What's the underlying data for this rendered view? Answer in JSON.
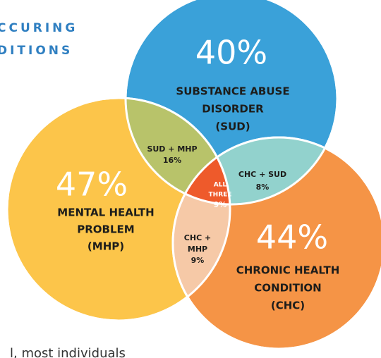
{
  "header": {
    "lines": [
      "CCURING",
      "DITIONS"
    ]
  },
  "circles": [
    {
      "percent": "40%",
      "label": [
        "SUBSTANCE ABUSE",
        "DISORDER",
        "(SUD)"
      ]
    },
    {
      "percent": "47%",
      "label": [
        "MENTAL HEALTH",
        "PROBLEM",
        "(MHP)"
      ]
    },
    {
      "percent": "44%",
      "label": [
        "CHRONIC HEALTH",
        "CONDITION",
        "(CHC)"
      ]
    }
  ],
  "overlaps": [
    {
      "label": [
        "SUD + MHP",
        "16%"
      ]
    },
    {
      "label": [
        "CHC + SUD",
        "8%"
      ]
    },
    {
      "label": [
        "CHC +",
        "MHP",
        "9%"
      ]
    },
    {
      "label": [
        "ALL",
        "THREE",
        "9%"
      ]
    }
  ],
  "footer": "l, most individuals"
}
